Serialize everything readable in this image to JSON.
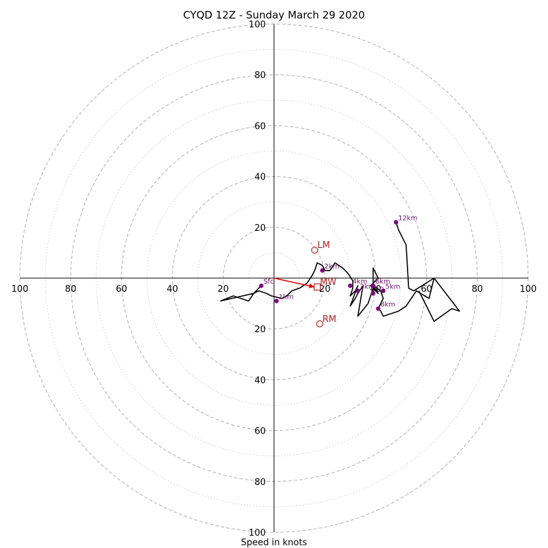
{
  "chart_data": {
    "type": "hodograph",
    "title": "CYQD 12Z - Sunday March 29 2020",
    "xlabel": "Speed in knots",
    "range": [
      -100,
      100
    ],
    "ring_major": [
      20,
      40,
      60,
      80,
      100
    ],
    "ring_minor": [
      10,
      30,
      50,
      70,
      90
    ],
    "tick_values": [
      20,
      40,
      60,
      80,
      100
    ],
    "grid": true,
    "colors": {
      "trace": "#000000",
      "height": "#800080",
      "marker": "#b22222",
      "mean_wind": "#e60000",
      "grid": "#bbbbbb"
    },
    "trace": [
      [
        -5,
        -3
      ],
      [
        -8,
        -6
      ],
      [
        -10,
        -9
      ],
      [
        -13,
        -8
      ],
      [
        -16,
        -7
      ],
      [
        -21,
        -9
      ],
      [
        -8,
        -6
      ],
      [
        -6,
        -5
      ],
      [
        -3,
        -6
      ],
      [
        -1,
        -7
      ],
      [
        3,
        -8
      ],
      [
        5,
        -7
      ],
      [
        7,
        -5
      ],
      [
        10,
        -4
      ],
      [
        13,
        -2
      ],
      [
        15,
        1
      ],
      [
        16,
        3
      ],
      [
        17,
        6
      ],
      [
        19,
        5
      ],
      [
        20,
        3
      ],
      [
        22,
        3
      ],
      [
        24,
        6
      ],
      [
        27,
        4
      ],
      [
        29,
        2
      ],
      [
        31,
        -1
      ],
      [
        31,
        -4
      ],
      [
        30,
        -7
      ],
      [
        32,
        -5
      ],
      [
        33,
        -3
      ],
      [
        30,
        -11
      ],
      [
        32,
        -8
      ],
      [
        33,
        -6
      ],
      [
        35,
        -3
      ],
      [
        33,
        -15
      ],
      [
        37,
        -10
      ],
      [
        39,
        -4
      ],
      [
        39,
        4
      ],
      [
        40,
        2
      ],
      [
        41,
        0
      ],
      [
        38,
        -3
      ],
      [
        41,
        -6
      ],
      [
        39,
        -3
      ],
      [
        42,
        -5
      ],
      [
        43,
        -8
      ],
      [
        41,
        -12
      ],
      [
        42,
        -13
      ],
      [
        43,
        -15
      ],
      [
        49,
        -13
      ],
      [
        52,
        -11
      ],
      [
        56,
        -5
      ],
      [
        61,
        -8
      ],
      [
        63,
        0
      ],
      [
        55,
        -5
      ],
      [
        53,
        -4
      ],
      [
        52,
        13
      ],
      [
        49,
        19
      ],
      [
        48,
        22
      ]
    ],
    "trace_branch": [
      [
        63,
        0
      ],
      [
        73,
        -13
      ],
      [
        70,
        -12
      ],
      [
        63,
        -17
      ],
      [
        57,
        -5
      ]
    ],
    "height_markers": [
      {
        "label": "Sfc",
        "u": -5,
        "v": -3
      },
      {
        "label": "1km",
        "u": 1,
        "v": -9
      },
      {
        "label": "2km",
        "u": 19,
        "v": 3
      },
      {
        "label": "3km",
        "u": 33,
        "v": -5
      },
      {
        "label": "4km",
        "u": 30,
        "v": -3
      },
      {
        "label": "5km",
        "u": 43,
        "v": -5
      },
      {
        "label": "6km",
        "u": 39,
        "v": -3
      },
      {
        "label": "8km",
        "u": 41,
        "v": -12
      },
      {
        "label": "10",
        "u": 39,
        "v": -6
      },
      {
        "label": "12km",
        "u": 48,
        "v": 22
      }
    ],
    "storm_markers": [
      {
        "label": "LM",
        "u": 16,
        "v": 11,
        "shape": "circle"
      },
      {
        "label": "RM",
        "u": 18,
        "v": -18,
        "shape": "circle"
      },
      {
        "label": "MW",
        "u": 17,
        "v": -3.5,
        "shape": "square"
      }
    ],
    "mean_wind_arrow": {
      "u": 16,
      "v": -3.5
    }
  }
}
